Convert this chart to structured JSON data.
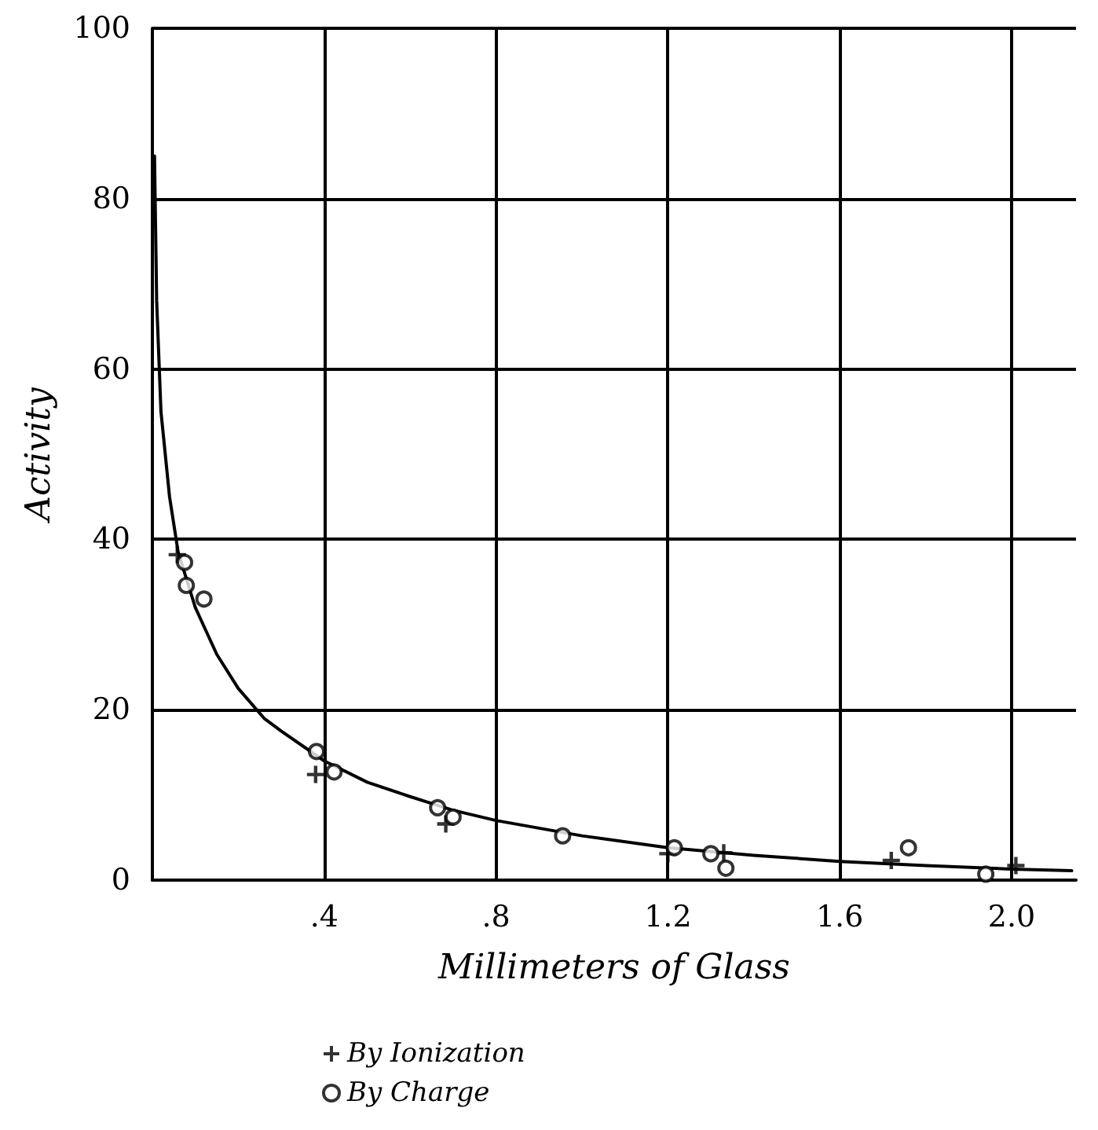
{
  "chart_data": {
    "type": "scatter",
    "xlabel": "Millimeters of Glass",
    "ylabel": "Activity",
    "xlim": [
      0,
      2.15
    ],
    "ylim": [
      0,
      100
    ],
    "xticks": [
      {
        "value": 0,
        "label": null
      },
      {
        "value": 0.4,
        "label": ".4"
      },
      {
        "value": 0.8,
        "label": ".8"
      },
      {
        "value": 1.2,
        "label": "1.2"
      },
      {
        "value": 1.6,
        "label": "1.6"
      },
      {
        "value": 2.0,
        "label": "2.0"
      }
    ],
    "yticks": [
      0,
      20,
      40,
      60,
      80,
      100
    ],
    "grid": true,
    "legend": "bottom",
    "series": [
      {
        "name": "By Ionization",
        "color": "#000000",
        "marker": "cross",
        "x": [
          0.058,
          0.38,
          0.683,
          1.2,
          1.33,
          1.72,
          2.01
        ],
        "values": [
          38.2,
          12.4,
          6.6,
          3.1,
          3.2,
          2.3,
          1.7
        ]
      },
      {
        "name": "By Charge",
        "color": "#000000",
        "marker": "circle",
        "x": [
          0.075,
          0.079,
          0.12,
          0.382,
          0.423,
          0.664,
          0.7,
          0.955,
          1.215,
          1.3,
          1.335,
          1.76,
          1.94
        ],
        "values": [
          37.3,
          34.6,
          33.0,
          15.1,
          12.7,
          8.5,
          7.4,
          5.2,
          3.8,
          3.1,
          1.4,
          3.8,
          0.7
        ]
      },
      {
        "type": "line",
        "color": "#000000",
        "marker": "none",
        "line_style": "solid",
        "x": [
          0.005,
          0.01,
          0.02,
          0.04,
          0.06,
          0.1,
          0.15,
          0.2,
          0.26,
          0.3,
          0.4,
          0.5,
          0.6,
          0.7,
          0.8,
          1.0,
          1.2,
          1.4,
          1.6,
          1.8,
          2.0,
          2.14
        ],
        "values": [
          85,
          68,
          55,
          45,
          38.5,
          32,
          26.5,
          22.5,
          19,
          17.5,
          14,
          11.5,
          9.8,
          8.2,
          7,
          5.2,
          3.8,
          2.9,
          2.2,
          1.7,
          1.3,
          1.1
        ]
      }
    ]
  }
}
